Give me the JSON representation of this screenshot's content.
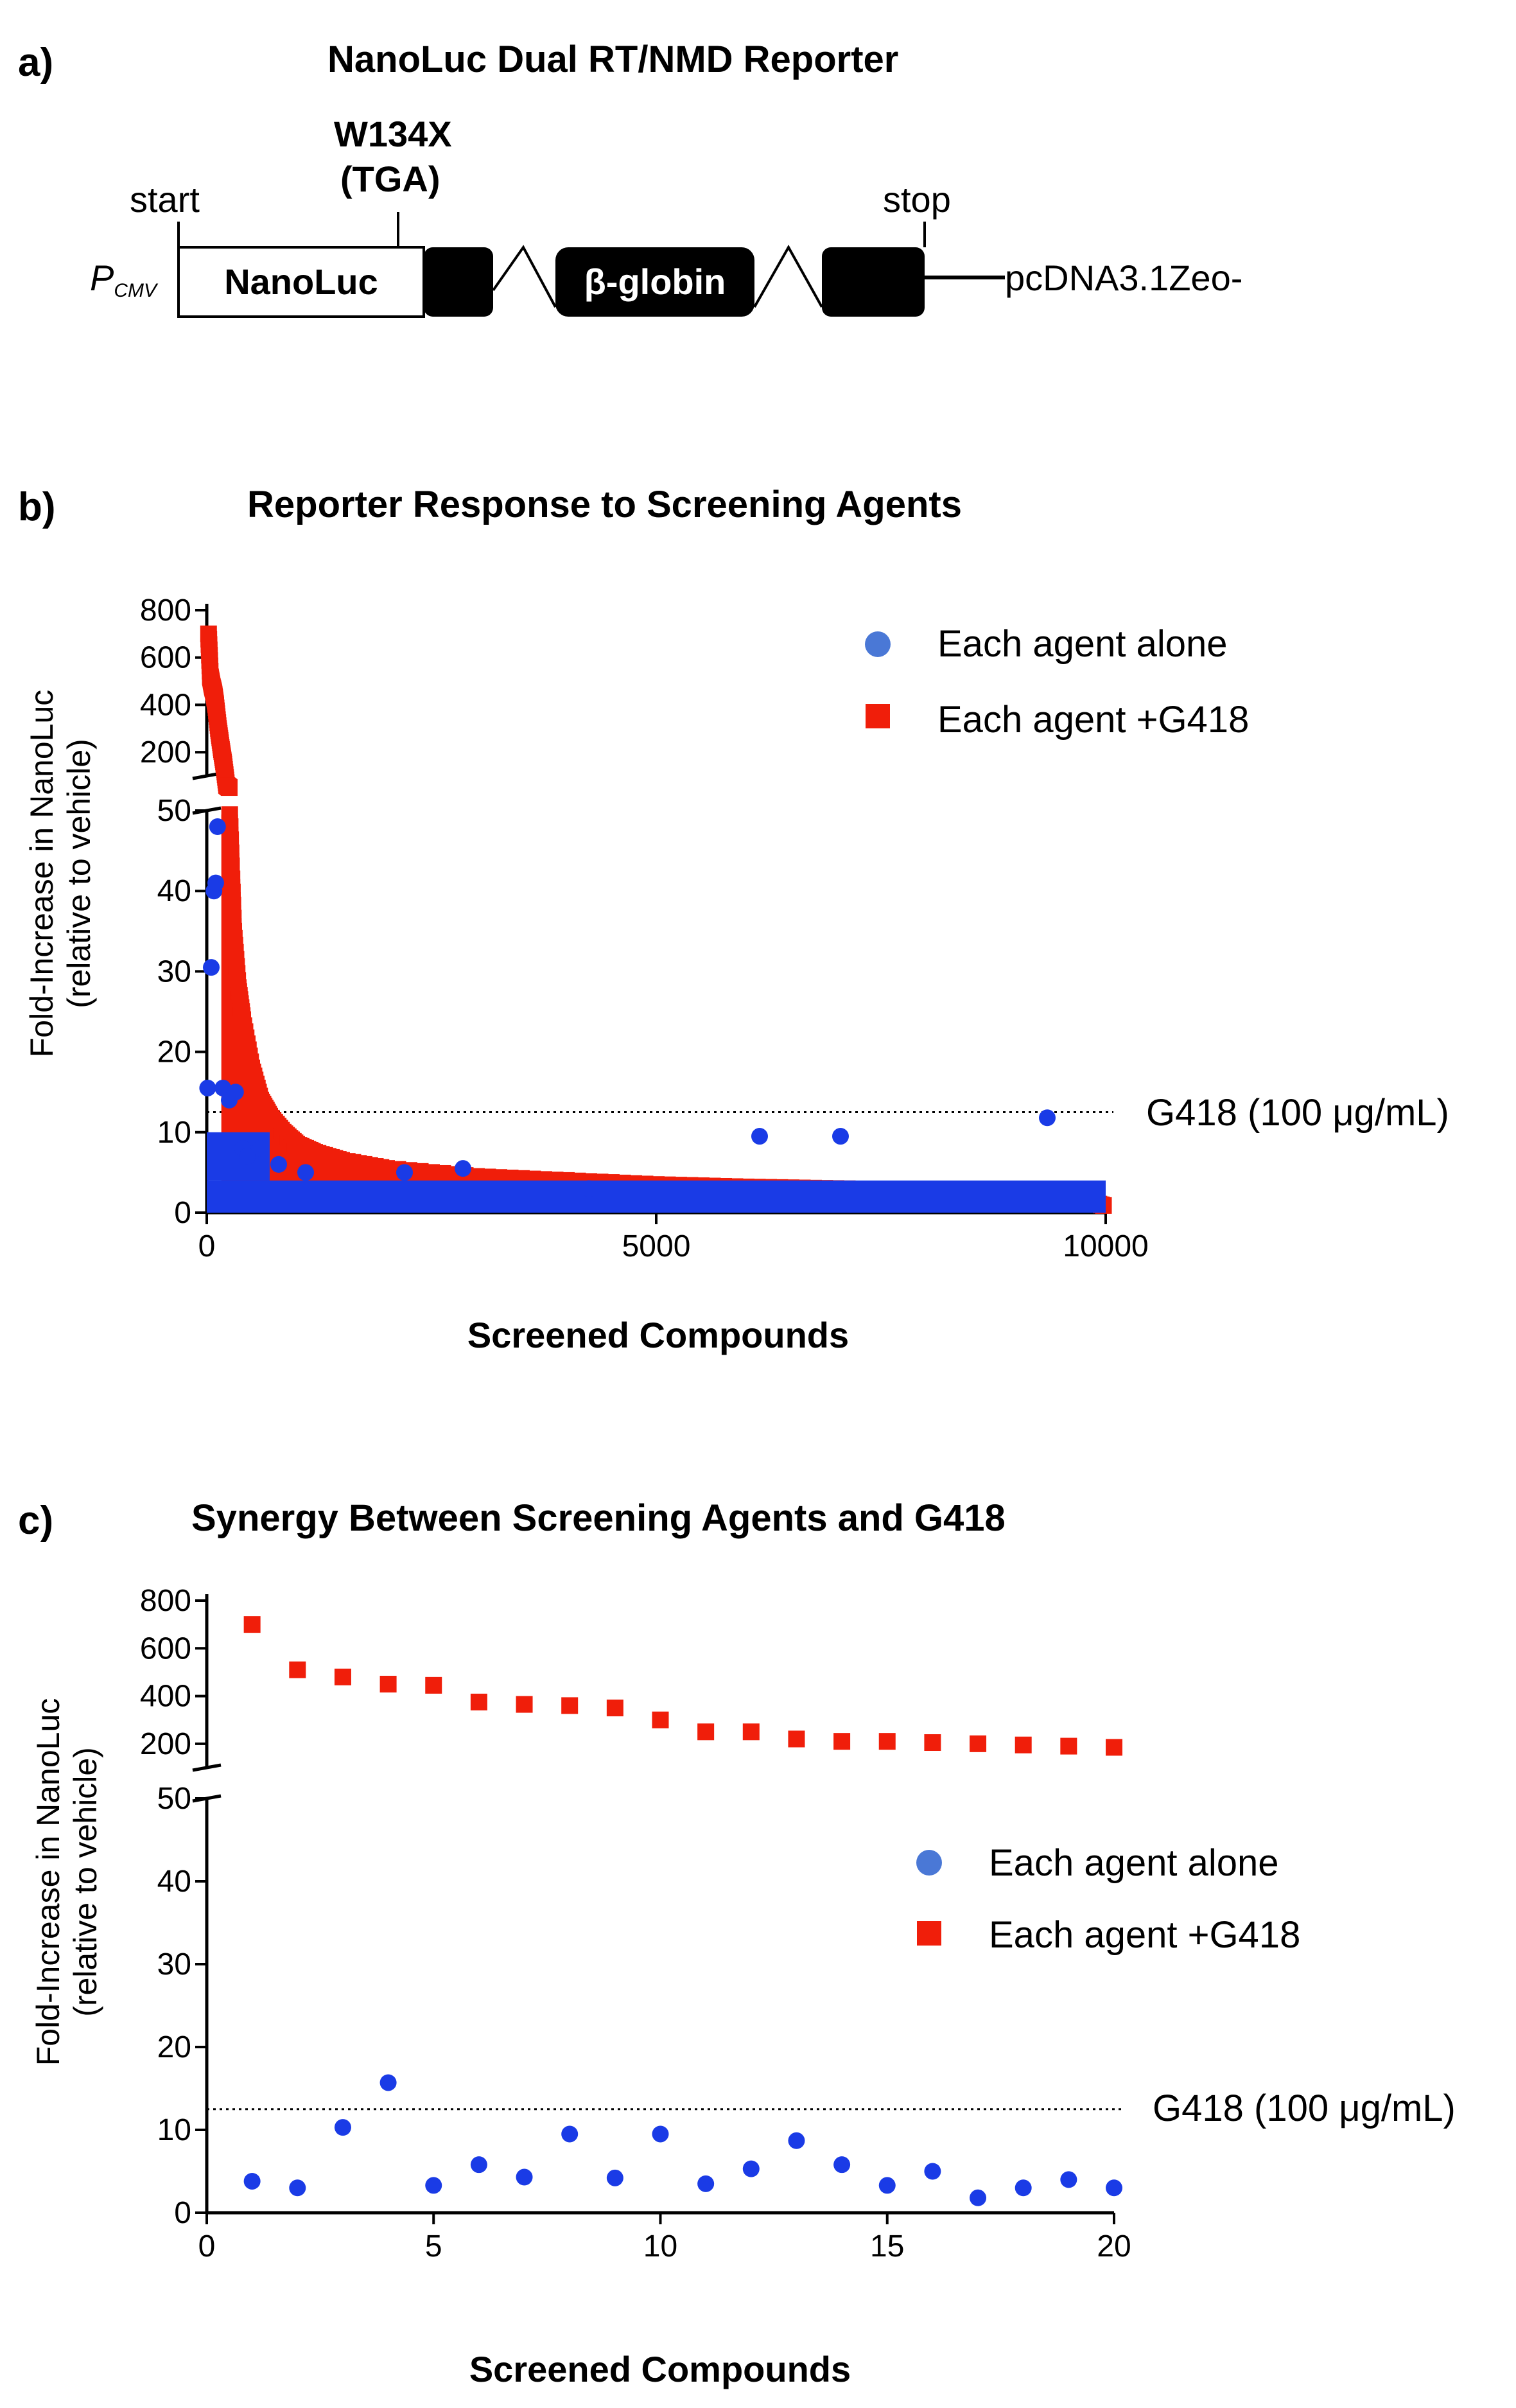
{
  "panels": {
    "a": {
      "label": "a)",
      "title": "NanoLuc Dual RT/NMD Reporter",
      "mutation": "W134X",
      "codon": "(TGA)",
      "start": "start",
      "stop": "stop",
      "promoter": "P",
      "promoter_sub": "CMV",
      "nanoluc": "NanoLuc",
      "globin": "β-globin",
      "vector": "pcDNA3.1Zeo-"
    },
    "b": {
      "label": "b)"
    },
    "c": {
      "label": "c)"
    }
  },
  "colors": {
    "alone": "#1a3be6",
    "g418": "#f01e0a",
    "legend_blue": "#4a78d6"
  },
  "chart_data": [
    {
      "type": "scatter",
      "title": "Reporter Response to Screening Agents",
      "xlabel": "Screened Compounds",
      "ylabel": [
        "Fold-Increase in NanoLuc",
        "(relative to vehicle)"
      ],
      "xlim": [
        0,
        10000
      ],
      "x_ticks": [
        "0",
        "5000",
        "10000"
      ],
      "y_lower_ticks": [
        "0",
        "10",
        "20",
        "30",
        "40",
        "50"
      ],
      "y_upper_ticks": [
        "200",
        "400",
        "600",
        "800"
      ],
      "ylim_lower": [
        0,
        50
      ],
      "ylim_upper": [
        100,
        800
      ],
      "reference_line": {
        "value": 12.5,
        "label": "G418 (100 μg/mL)"
      },
      "legend": [
        "Each agent alone",
        "Each agent +G418"
      ],
      "series": [
        {
          "name": "Each agent alone",
          "points": [
            [
              10,
              15.5
            ],
            [
              50,
              30.5
            ],
            [
              80,
              40
            ],
            [
              100,
              41
            ],
            [
              120,
              48
            ],
            [
              180,
              15.5
            ],
            [
              250,
              14
            ],
            [
              320,
              15
            ],
            [
              400,
              8
            ],
            [
              450,
              7
            ],
            [
              600,
              8
            ],
            [
              800,
              6
            ],
            [
              1100,
              5
            ],
            [
              2200,
              5
            ],
            [
              2850,
              5.5
            ],
            [
              4250,
              3
            ],
            [
              6150,
              9.5
            ],
            [
              7050,
              9.5
            ],
            [
              9350,
              11.8
            ]
          ]
        },
        {
          "name": "Each agent +G418",
          "points": [
            [
              20,
              700
            ],
            [
              40,
              520
            ],
            [
              60,
              480
            ],
            [
              80,
              450
            ],
            [
              100,
              400
            ],
            [
              130,
              300
            ],
            [
              160,
              220
            ],
            [
              190,
              150
            ],
            [
              220,
              60
            ],
            [
              260,
              48
            ],
            [
              300,
              35
            ],
            [
              350,
              28
            ],
            [
              400,
              24
            ],
            [
              500,
              18
            ],
            [
              600,
              14
            ],
            [
              700,
              12
            ],
            [
              850,
              10
            ],
            [
              1000,
              8.5
            ],
            [
              1200,
              7.5
            ],
            [
              1500,
              6.5
            ],
            [
              2000,
              5.5
            ],
            [
              3000,
              4.5
            ],
            [
              4000,
              4
            ],
            [
              5000,
              3.5
            ],
            [
              6000,
              3.2
            ],
            [
              7000,
              3
            ],
            [
              8000,
              2.8
            ],
            [
              9000,
              2.5
            ],
            [
              9500,
              2.2
            ],
            [
              9800,
              1.5
            ],
            [
              10000,
              0.8
            ]
          ]
        }
      ]
    },
    {
      "type": "scatter",
      "title": "Synergy Between Screening Agents and G418",
      "xlabel": "Screened Compounds",
      "ylabel": [
        "Fold-Increase in NanoLuc",
        "(relative to vehicle)"
      ],
      "xlim": [
        0,
        20
      ],
      "x_ticks": [
        "0",
        "5",
        "10",
        "15",
        "20"
      ],
      "y_lower_ticks": [
        "0",
        "10",
        "20",
        "30",
        "40",
        "50"
      ],
      "y_upper_ticks": [
        "200",
        "400",
        "600",
        "800"
      ],
      "ylim_lower": [
        0,
        50
      ],
      "ylim_upper": [
        100,
        800
      ],
      "reference_line": {
        "value": 12.5,
        "label": "G418 (100 μg/mL)"
      },
      "legend": [
        "Each agent alone",
        "Each agent +G418"
      ],
      "series": [
        {
          "name": "Each agent alone",
          "points": [
            [
              1,
              3.8
            ],
            [
              2,
              3
            ],
            [
              3,
              10.3
            ],
            [
              4,
              15.7
            ],
            [
              5,
              3.3
            ],
            [
              6,
              5.8
            ],
            [
              7,
              4.3
            ],
            [
              8,
              9.5
            ],
            [
              9,
              4.2
            ],
            [
              10,
              9.5
            ],
            [
              11,
              3.5
            ],
            [
              12,
              5.3
            ],
            [
              13,
              8.7
            ],
            [
              14,
              5.8
            ],
            [
              15,
              3.3
            ],
            [
              16,
              5
            ],
            [
              17,
              1.8
            ],
            [
              18,
              3
            ],
            [
              19,
              4
            ],
            [
              20,
              3
            ]
          ]
        },
        {
          "name": "Each agent +G418",
          "points": [
            [
              1,
              700
            ],
            [
              2,
              510
            ],
            [
              3,
              480
            ],
            [
              4,
              450
            ],
            [
              5,
              445
            ],
            [
              6,
              375
            ],
            [
              7,
              365
            ],
            [
              8,
              360
            ],
            [
              9,
              350
            ],
            [
              10,
              300
            ],
            [
              11,
              250
            ],
            [
              12,
              250
            ],
            [
              13,
              220
            ],
            [
              14,
              210
            ],
            [
              15,
              210
            ],
            [
              16,
              205
            ],
            [
              17,
              200
            ],
            [
              18,
              195
            ],
            [
              19,
              190
            ],
            [
              20,
              185
            ]
          ]
        }
      ]
    }
  ]
}
